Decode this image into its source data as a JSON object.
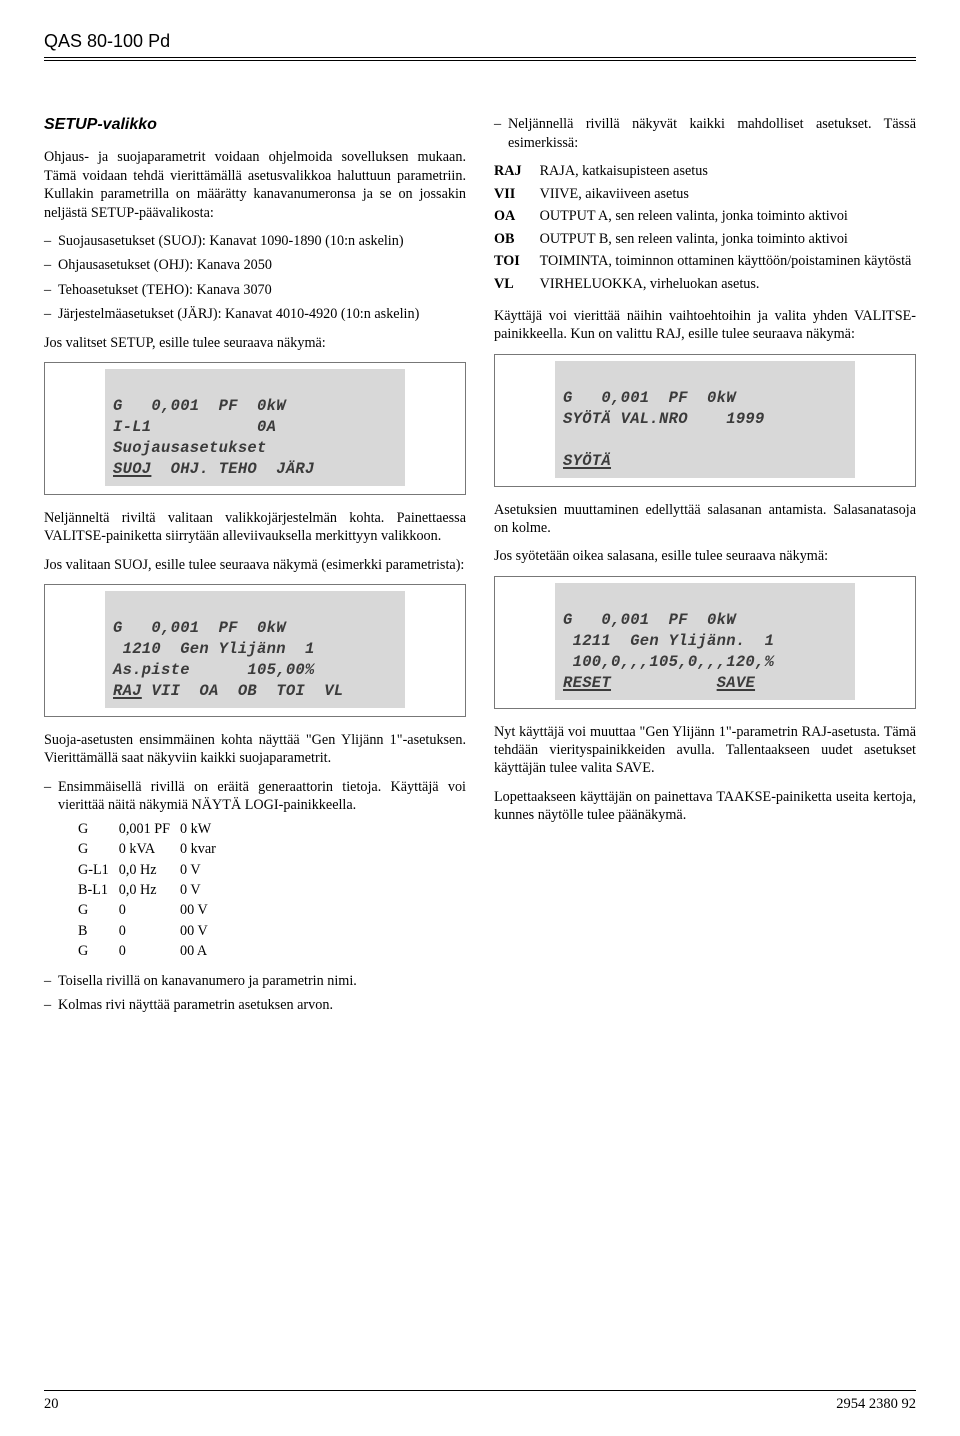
{
  "header": {
    "title": "QAS 80-100 Pd"
  },
  "footer": {
    "page": "20",
    "doc": "2954 2380 92"
  },
  "left": {
    "section_title": "SETUP-valikko",
    "intro1": "Ohjaus- ja suojaparametrit voidaan ohjelmoida sovelluksen mukaan. Tämä voidaan tehdä vierittämällä asetusvalikkoa haluttuun parametriin. Kullakin parametrilla on määrätty kanavanumeronsa ja se on jossakin neljästä SETUP-päävalikosta:",
    "mainmenu": [
      "Suojausasetukset (SUOJ): Kanavat 1090-1890 (10:n askelin)",
      "Ohjausasetukset (OHJ): Kanava 2050",
      "Tehoasetukset (TEHO): Kanava 3070",
      "Järjestelmäasetukset (JÄRJ): Kanavat 4010-4920 (10:n askelin)"
    ],
    "after_list1": "Jos valitset SETUP, esille tulee seuraava näkymä:",
    "lcd1": {
      "l1": "G   0,001  PF  0kW",
      "l2": "I-L1           0A",
      "l3": "Suojausasetukset",
      "l4a": "SUOJ",
      "l4b": "  OHJ. TEHO  JÄRJ"
    },
    "para2": "Neljänneltä riviltä valitaan valikkojärjestelmän kohta. Painettaessa VALITSE-painiketta siirrytään alleviivauksella merkittyyn valikkoon.",
    "para3": "Jos valitaan SUOJ, esille tulee seuraava näkymä (esimerkki parametrista):",
    "lcd2": {
      "l1": "G   0,001  PF  0kW",
      "l2": " 1210  Gen Ylijänn  1",
      "l3": "As.piste      105,00%",
      "l4a": "RAJ",
      "l4b": " VII  OA  OB  TOI  VL"
    },
    "para4": "Suoja-asetusten ensimmäinen kohta näyttää \"Gen Ylijänn 1\"-asetuksen. Vierittämällä saat näkyviin kaikki suojaparametrit.",
    "bullet_first": "Ensimmäisellä rivillä on eräitä generaattorin tietoja. Käyttäjä voi vierittää näitä näkymiä NÄYTÄ LOGI-painikkeella.",
    "gen_table": [
      [
        "G",
        "0,001 PF",
        "0 kW"
      ],
      [
        "G",
        "0 kVA",
        "0 kvar"
      ],
      [
        "G-L1",
        "0,0 Hz",
        "0 V"
      ],
      [
        "B-L1",
        "0,0 Hz",
        "0 V"
      ],
      [
        "G",
        "0",
        "00 V"
      ],
      [
        "B",
        "0",
        "00 V"
      ],
      [
        "G",
        "0",
        "00 A"
      ]
    ],
    "bullet2": "Toisella rivillä on kanavanumero ja parametrin nimi.",
    "bullet3": "Kolmas rivi näyttää parametrin asetuksen arvon."
  },
  "right": {
    "intro": "Neljännellä rivillä näkyvät kaikki mahdolliset asetukset. Tässä esimerkissä:",
    "defs": [
      [
        "RAJ",
        "RAJA, katkaisupisteen asetus"
      ],
      [
        "VII",
        "VIIVE, aikaviiveen asetus"
      ],
      [
        "OA",
        "OUTPUT A, sen releen valinta, jonka toiminto aktivoi"
      ],
      [
        "OB",
        "OUTPUT B, sen releen valinta, jonka toiminto aktivoi"
      ],
      [
        "TOI",
        "TOIMINTA, toiminnon ottaminen käyttöön/poistaminen käytöstä"
      ],
      [
        "VL",
        "VIRHELUOKKA, virheluokan asetus."
      ]
    ],
    "para1": "Käyttäjä voi vierittää näihin vaihtoehtoihin ja valita yhden VALITSE-painikkeella. Kun on valittu RAJ, esille tulee seuraava näkymä:",
    "lcd3": {
      "l1": "G   0,001  PF  0kW",
      "l2": "SYÖTÄ VAL.NRO    1999",
      "l3": " ",
      "l4": "SYÖTÄ"
    },
    "para2": "Asetuksien muuttaminen edellyttää salasanan antamista. Salasanatasoja on kolme.",
    "para3": "Jos syötetään oikea salasana, esille tulee seuraava näkymä:",
    "lcd4": {
      "l1": "G   0,001  PF  0kW",
      "l2": " 1211  Gen Ylijänn.  1",
      "l3": " 100,0,,,105,0,,,120,%",
      "l4a": "RESET",
      "l4b": "           ",
      "l4c": "SAVE"
    },
    "para4": "Nyt käyttäjä voi muuttaa \"Gen Ylijänn 1\"-parametrin RAJ-asetusta. Tämä tehdään vierityspainikkeiden avulla. Tallentaakseen uudet asetukset käyttäjän tulee valita SAVE.",
    "para5": "Lopettaakseen käyttäjän on painettava TAAKSE-painiketta useita kertoja, kunnes näytölle tulee päänäkymä."
  }
}
